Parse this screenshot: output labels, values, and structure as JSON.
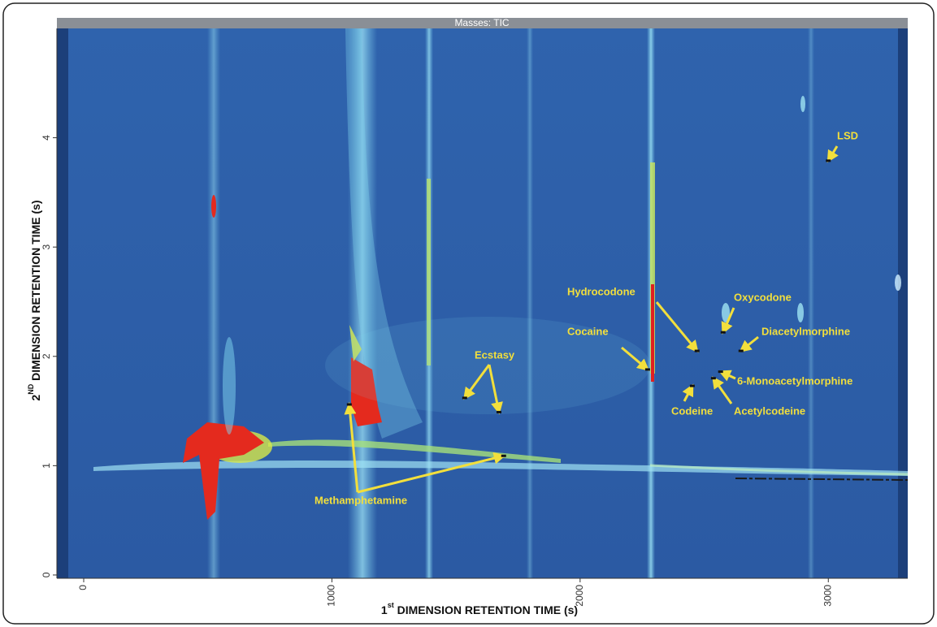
{
  "chart_data": {
    "type": "contour",
    "title": "Masses: TIC",
    "xlabel_parts": [
      "1",
      "st",
      " DIMENSION RETENTION TIME (s)"
    ],
    "ylabel_parts": [
      "2",
      "ND",
      " DIMENSION RETENTION TIME (s)"
    ],
    "xlim": [
      -108,
      3320
    ],
    "ylim": [
      -0.03,
      5.0
    ],
    "xticks": [
      0,
      1000,
      2000,
      3000
    ],
    "yticks": [
      0,
      1,
      2,
      3,
      4
    ],
    "annotation_color": "#f2df3c",
    "annotations": [
      {
        "label": "LSD",
        "x": [
          3000
        ],
        "y": [
          3.79
        ]
      },
      {
        "label": "Hydrocodone",
        "x": [
          2471
        ],
        "y": [
          2.05
        ]
      },
      {
        "label": "Oxycodone",
        "x": [
          2576
        ],
        "y": [
          2.22
        ]
      },
      {
        "label": "Diacetylmorphine",
        "x": [
          2648
        ],
        "y": [
          2.05
        ]
      },
      {
        "label": "Cocaine",
        "x": [
          2272
        ],
        "y": [
          1.88
        ]
      },
      {
        "label": "6-Monoacetylmorphine",
        "x": [
          2566
        ],
        "y": [
          1.86
        ]
      },
      {
        "label": "Codeine",
        "x": [
          2452
        ],
        "y": [
          1.73
        ]
      },
      {
        "label": "Acetylcodeine",
        "x": [
          2537
        ],
        "y": [
          1.8
        ]
      },
      {
        "label": "Ecstasy",
        "x": [
          1535,
          1673
        ],
        "y": [
          1.62,
          1.49
        ]
      },
      {
        "label": "Methamphetamine",
        "x": [
          1070,
          1692
        ],
        "y": [
          1.56,
          1.09
        ]
      }
    ]
  }
}
